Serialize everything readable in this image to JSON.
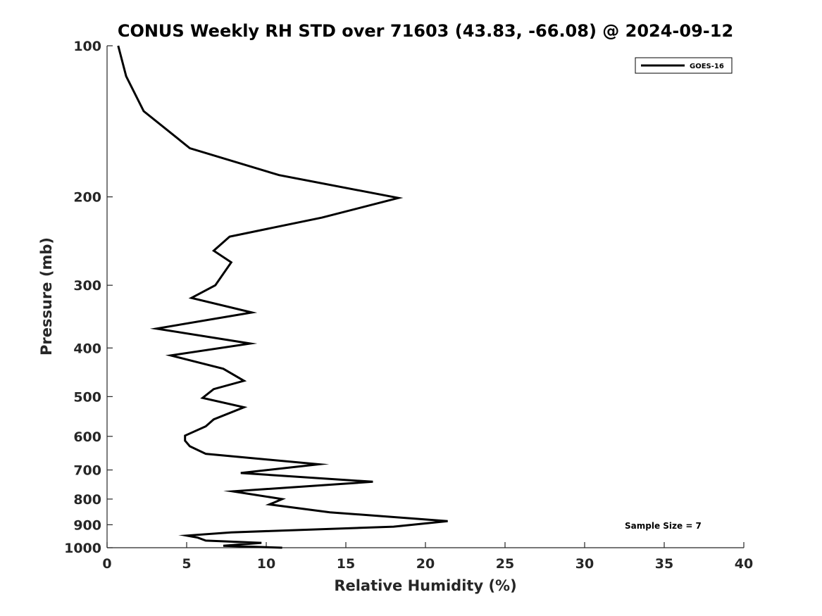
{
  "chart_data": {
    "type": "line",
    "title": "CONUS Weekly RH STD over 71603 (43.83, -66.08) @ 2024-09-12",
    "xlabel": "Relative Humidity (%)",
    "ylabel": "Pressure (mb)",
    "xlim": [
      0,
      40
    ],
    "ylim": [
      100,
      1000
    ],
    "y_scale": "log",
    "y_reversed": true,
    "x_ticks": [
      "0",
      "5",
      "10",
      "15",
      "20",
      "25",
      "30",
      "35",
      "40"
    ],
    "y_ticks": [
      "100",
      "200",
      "300",
      "400",
      "500",
      "600",
      "700",
      "800",
      "900",
      "1000"
    ],
    "grid": false,
    "legend_position": "top-right",
    "annotation": "Sample Size = 7",
    "series": [
      {
        "name": "GOES-16",
        "color": "#000000",
        "points": [
          [
            0.7,
            100
          ],
          [
            1.2,
            115
          ],
          [
            2.3,
            135
          ],
          [
            5.2,
            160
          ],
          [
            10.8,
            181
          ],
          [
            18.3,
            201
          ],
          [
            13.5,
            220
          ],
          [
            7.7,
            240
          ],
          [
            6.7,
            256
          ],
          [
            7.8,
            270
          ],
          [
            6.8,
            300
          ],
          [
            5.3,
            318
          ],
          [
            9.1,
            340
          ],
          [
            3.1,
            366
          ],
          [
            9.0,
            392
          ],
          [
            4.0,
            414
          ],
          [
            7.3,
            440
          ],
          [
            8.6,
            465
          ],
          [
            6.7,
            483
          ],
          [
            6.0,
            503
          ],
          [
            8.6,
            525
          ],
          [
            6.7,
            555
          ],
          [
            6.2,
            573
          ],
          [
            4.9,
            598
          ],
          [
            4.9,
            612
          ],
          [
            5.2,
            628
          ],
          [
            6.2,
            650
          ],
          [
            13.3,
            682
          ],
          [
            8.4,
            710
          ],
          [
            16.7,
            739
          ],
          [
            7.9,
            772
          ],
          [
            11.0,
            800
          ],
          [
            10.4,
            815
          ],
          [
            10.2,
            820
          ],
          [
            14.0,
            850
          ],
          [
            21.4,
            885
          ],
          [
            18.0,
            908
          ],
          [
            7.8,
            932
          ],
          [
            5.0,
            946
          ],
          [
            5.7,
            955
          ],
          [
            6.2,
            968
          ],
          [
            9.7,
            978
          ],
          [
            7.3,
            991
          ],
          [
            11.0,
            1000
          ]
        ]
      }
    ]
  }
}
